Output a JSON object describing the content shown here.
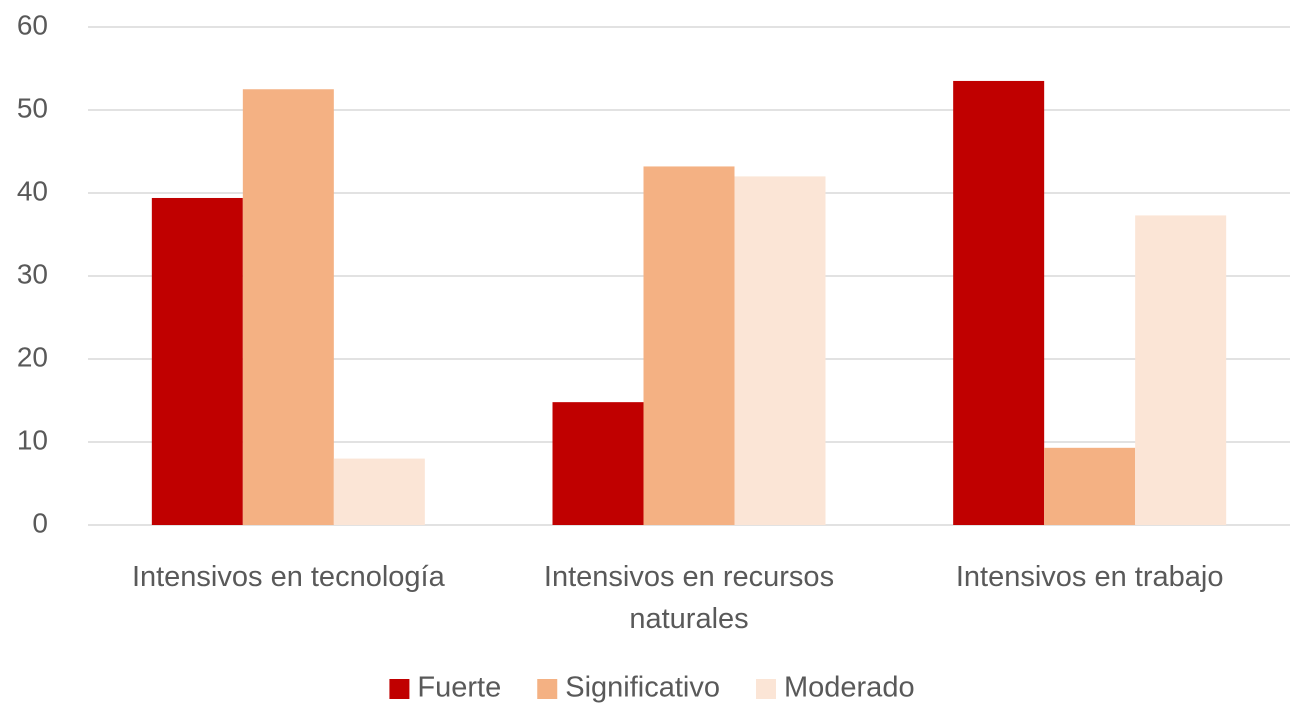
{
  "chart_data": {
    "type": "bar",
    "categories": [
      "Intensivos en tecnología",
      "Intensivos en recursos naturales",
      "Intensivos en trabajo"
    ],
    "series": [
      {
        "name": "Fuerte",
        "color": "#c00000",
        "values": [
          39.4,
          14.8,
          53.5
        ]
      },
      {
        "name": "Significativo",
        "color": "#f4b183",
        "values": [
          52.5,
          43.2,
          9.3
        ]
      },
      {
        "name": "Moderado",
        "color": "#fbe5d6",
        "values": [
          8,
          42,
          37.3
        ]
      }
    ],
    "ylim": [
      0,
      60
    ],
    "yticks": [
      0,
      10,
      20,
      30,
      40,
      50,
      60
    ],
    "grid": true,
    "legend": "bottom"
  }
}
